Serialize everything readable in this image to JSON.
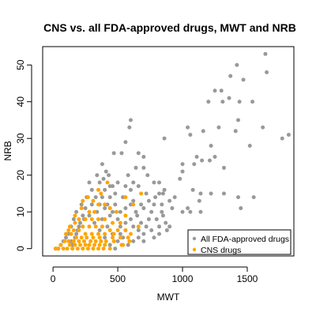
{
  "chart_data": {
    "type": "scatter",
    "title": "CNS vs. all FDA-approved drugs, MWT and NRB",
    "xlabel": "MWT",
    "ylabel": "NRB",
    "xlim": [
      -80,
      1860
    ],
    "ylim": [
      -2,
      55
    ],
    "xticks": [
      0,
      500,
      1000,
      1500
    ],
    "yticks": [
      0,
      10,
      20,
      30,
      40,
      50
    ],
    "grid": false,
    "legend_position": "bottom-right",
    "series": [
      {
        "name": "All FDA-approved drugs",
        "color": "#999999",
        "points": [
          [
            1640,
            53
          ],
          [
            1650,
            48
          ],
          [
            1420,
            50
          ],
          [
            1470,
            46
          ],
          [
            1370,
            47
          ],
          [
            1300,
            43
          ],
          [
            1310,
            40
          ],
          [
            1360,
            41
          ],
          [
            1250,
            43
          ],
          [
            1200,
            40
          ],
          [
            1440,
            40
          ],
          [
            1540,
            40
          ],
          [
            1430,
            35
          ],
          [
            1280,
            33
          ],
          [
            1410,
            32
          ],
          [
            1160,
            32
          ],
          [
            1040,
            33
          ],
          [
            1060,
            31
          ],
          [
            1620,
            33
          ],
          [
            1820,
            31
          ],
          [
            1770,
            30
          ],
          [
            1520,
            28
          ],
          [
            1220,
            28
          ],
          [
            1250,
            25
          ],
          [
            1110,
            25
          ],
          [
            1150,
            24
          ],
          [
            1210,
            24
          ],
          [
            1090,
            23
          ],
          [
            1000,
            23
          ],
          [
            1320,
            22
          ],
          [
            1000,
            21
          ],
          [
            980,
            19
          ],
          [
            860,
            30
          ],
          [
            600,
            35
          ],
          [
            590,
            33
          ],
          [
            560,
            29
          ],
          [
            470,
            26
          ],
          [
            530,
            26
          ],
          [
            660,
            26
          ],
          [
            700,
            25
          ],
          [
            700,
            22
          ],
          [
            640,
            22
          ],
          [
            580,
            20
          ],
          [
            430,
            20
          ],
          [
            410,
            21
          ],
          [
            340,
            20
          ],
          [
            380,
            23
          ],
          [
            730,
            20
          ],
          [
            780,
            18
          ],
          [
            820,
            18
          ],
          [
            860,
            16
          ],
          [
            1080,
            16
          ],
          [
            1140,
            15
          ],
          [
            1220,
            15
          ],
          [
            1130,
            13
          ],
          [
            1320,
            15
          ],
          [
            1430,
            14
          ],
          [
            1550,
            14
          ],
          [
            1450,
            11
          ],
          [
            1040,
            11
          ],
          [
            1000,
            10
          ],
          [
            1060,
            10
          ],
          [
            1140,
            10
          ],
          [
            840,
            12
          ],
          [
            900,
            13
          ],
          [
            940,
            14
          ],
          [
            920,
            11
          ],
          [
            850,
            9
          ],
          [
            870,
            7
          ],
          [
            820,
            6
          ],
          [
            900,
            6
          ],
          [
            880,
            5
          ],
          [
            820,
            4
          ],
          [
            780,
            3
          ],
          [
            680,
            12
          ],
          [
            640,
            10
          ],
          [
            600,
            8
          ],
          [
            560,
            7
          ],
          [
            520,
            6
          ],
          [
            520,
            10
          ],
          [
            480,
            12
          ],
          [
            440,
            14
          ],
          [
            400,
            16
          ],
          [
            360,
            18
          ],
          [
            460,
            17
          ],
          [
            480,
            15
          ],
          [
            540,
            14
          ],
          [
            600,
            16
          ],
          [
            620,
            13
          ],
          [
            700,
            11
          ],
          [
            760,
            10
          ],
          [
            740,
            8
          ],
          [
            720,
            6
          ],
          [
            700,
            4
          ],
          [
            660,
            3
          ],
          [
            620,
            2
          ],
          [
            580,
            1
          ],
          [
            540,
            3
          ],
          [
            500,
            2
          ],
          [
            460,
            4
          ],
          [
            420,
            6
          ],
          [
            380,
            8
          ],
          [
            340,
            10
          ],
          [
            300,
            12
          ],
          [
            260,
            14
          ],
          [
            220,
            12
          ],
          [
            180,
            10
          ],
          [
            160,
            8
          ],
          [
            140,
            6
          ],
          [
            120,
            4
          ],
          [
            100,
            3
          ],
          [
            80,
            2
          ],
          [
            60,
            1
          ],
          [
            40,
            0
          ],
          [
            20,
            0
          ],
          [
            140,
            2
          ],
          [
            180,
            4
          ],
          [
            200,
            6
          ],
          [
            240,
            8
          ],
          [
            280,
            9
          ],
          [
            320,
            7
          ],
          [
            360,
            5
          ],
          [
            400,
            3
          ],
          [
            440,
            1
          ],
          [
            480,
            0
          ],
          [
            360,
            12
          ],
          [
            400,
            11
          ],
          [
            440,
            9
          ],
          [
            500,
            8
          ],
          [
            560,
            11
          ],
          [
            600,
            12
          ],
          [
            650,
            9
          ],
          [
            680,
            7
          ],
          [
            740,
            13
          ],
          [
            790,
            14
          ],
          [
            820,
            15
          ],
          [
            850,
            15
          ],
          [
            300,
            16
          ],
          [
            280,
            18
          ],
          [
            250,
            11
          ],
          [
            230,
            9
          ],
          [
            210,
            7
          ],
          [
            190,
            5
          ],
          [
            170,
            3
          ],
          [
            150,
            1
          ],
          [
            330,
            14
          ],
          [
            380,
            14
          ],
          [
            420,
            12
          ],
          [
            460,
            10
          ],
          [
            520,
            4
          ],
          [
            560,
            5
          ],
          [
            620,
            6
          ],
          [
            660,
            5
          ],
          [
            700,
            2
          ],
          [
            760,
            5
          ],
          [
            800,
            8
          ],
          [
            840,
            10
          ],
          [
            780,
            12
          ],
          [
            720,
            15
          ],
          [
            660,
            17
          ],
          [
            620,
            18
          ],
          [
            560,
            17
          ],
          [
            500,
            18
          ],
          [
            440,
            17
          ],
          [
            390,
            19
          ]
        ]
      },
      {
        "name": "CNS drugs",
        "color": "#FFA500",
        "points": [
          [
            420,
            18
          ],
          [
            370,
            15
          ],
          [
            270,
            14
          ],
          [
            310,
            13
          ],
          [
            230,
            13
          ],
          [
            350,
            12
          ],
          [
            400,
            12
          ],
          [
            440,
            11
          ],
          [
            490,
            10
          ],
          [
            280,
            10
          ],
          [
            320,
            10
          ],
          [
            220,
            11
          ],
          [
            170,
            9
          ],
          [
            200,
            8
          ],
          [
            250,
            8
          ],
          [
            300,
            8
          ],
          [
            350,
            8
          ],
          [
            400,
            8
          ],
          [
            460,
            7
          ],
          [
            520,
            7
          ],
          [
            170,
            7
          ],
          [
            130,
            6
          ],
          [
            230,
            6
          ],
          [
            280,
            6
          ],
          [
            330,
            6
          ],
          [
            380,
            6
          ],
          [
            440,
            5
          ],
          [
            500,
            5
          ],
          [
            560,
            5
          ],
          [
            120,
            5
          ],
          [
            160,
            5
          ],
          [
            200,
            5
          ],
          [
            250,
            4
          ],
          [
            300,
            4
          ],
          [
            350,
            4
          ],
          [
            400,
            4
          ],
          [
            460,
            3
          ],
          [
            520,
            3
          ],
          [
            580,
            3
          ],
          [
            660,
            6
          ],
          [
            100,
            4
          ],
          [
            140,
            4
          ],
          [
            180,
            3
          ],
          [
            220,
            3
          ],
          [
            260,
            3
          ],
          [
            310,
            3
          ],
          [
            360,
            3
          ],
          [
            410,
            2
          ],
          [
            470,
            2
          ],
          [
            530,
            1
          ],
          [
            90,
            2
          ],
          [
            120,
            2
          ],
          [
            160,
            2
          ],
          [
            200,
            2
          ],
          [
            240,
            2
          ],
          [
            280,
            1
          ],
          [
            320,
            1
          ],
          [
            360,
            1
          ],
          [
            400,
            1
          ],
          [
            440,
            0
          ],
          [
            60,
            1
          ],
          [
            80,
            0
          ],
          [
            110,
            0
          ],
          [
            150,
            0
          ],
          [
            190,
            0
          ],
          [
            230,
            0
          ],
          [
            270,
            0
          ],
          [
            310,
            0
          ],
          [
            350,
            0
          ],
          [
            390,
            0
          ],
          [
            20,
            0
          ],
          [
            40,
            0
          ],
          [
            130,
            1
          ],
          [
            170,
            1
          ],
          [
            210,
            1
          ],
          [
            250,
            1
          ],
          [
            290,
            2
          ],
          [
            330,
            2
          ],
          [
            370,
            2
          ],
          [
            470,
            4
          ],
          [
            540,
            1
          ],
          [
            590,
            2
          ],
          [
            560,
            9
          ],
          [
            600,
            4
          ],
          [
            350,
            16
          ],
          [
            620,
            12
          ],
          [
            680,
            15
          ],
          [
            560,
            14
          ]
        ]
      }
    ]
  }
}
